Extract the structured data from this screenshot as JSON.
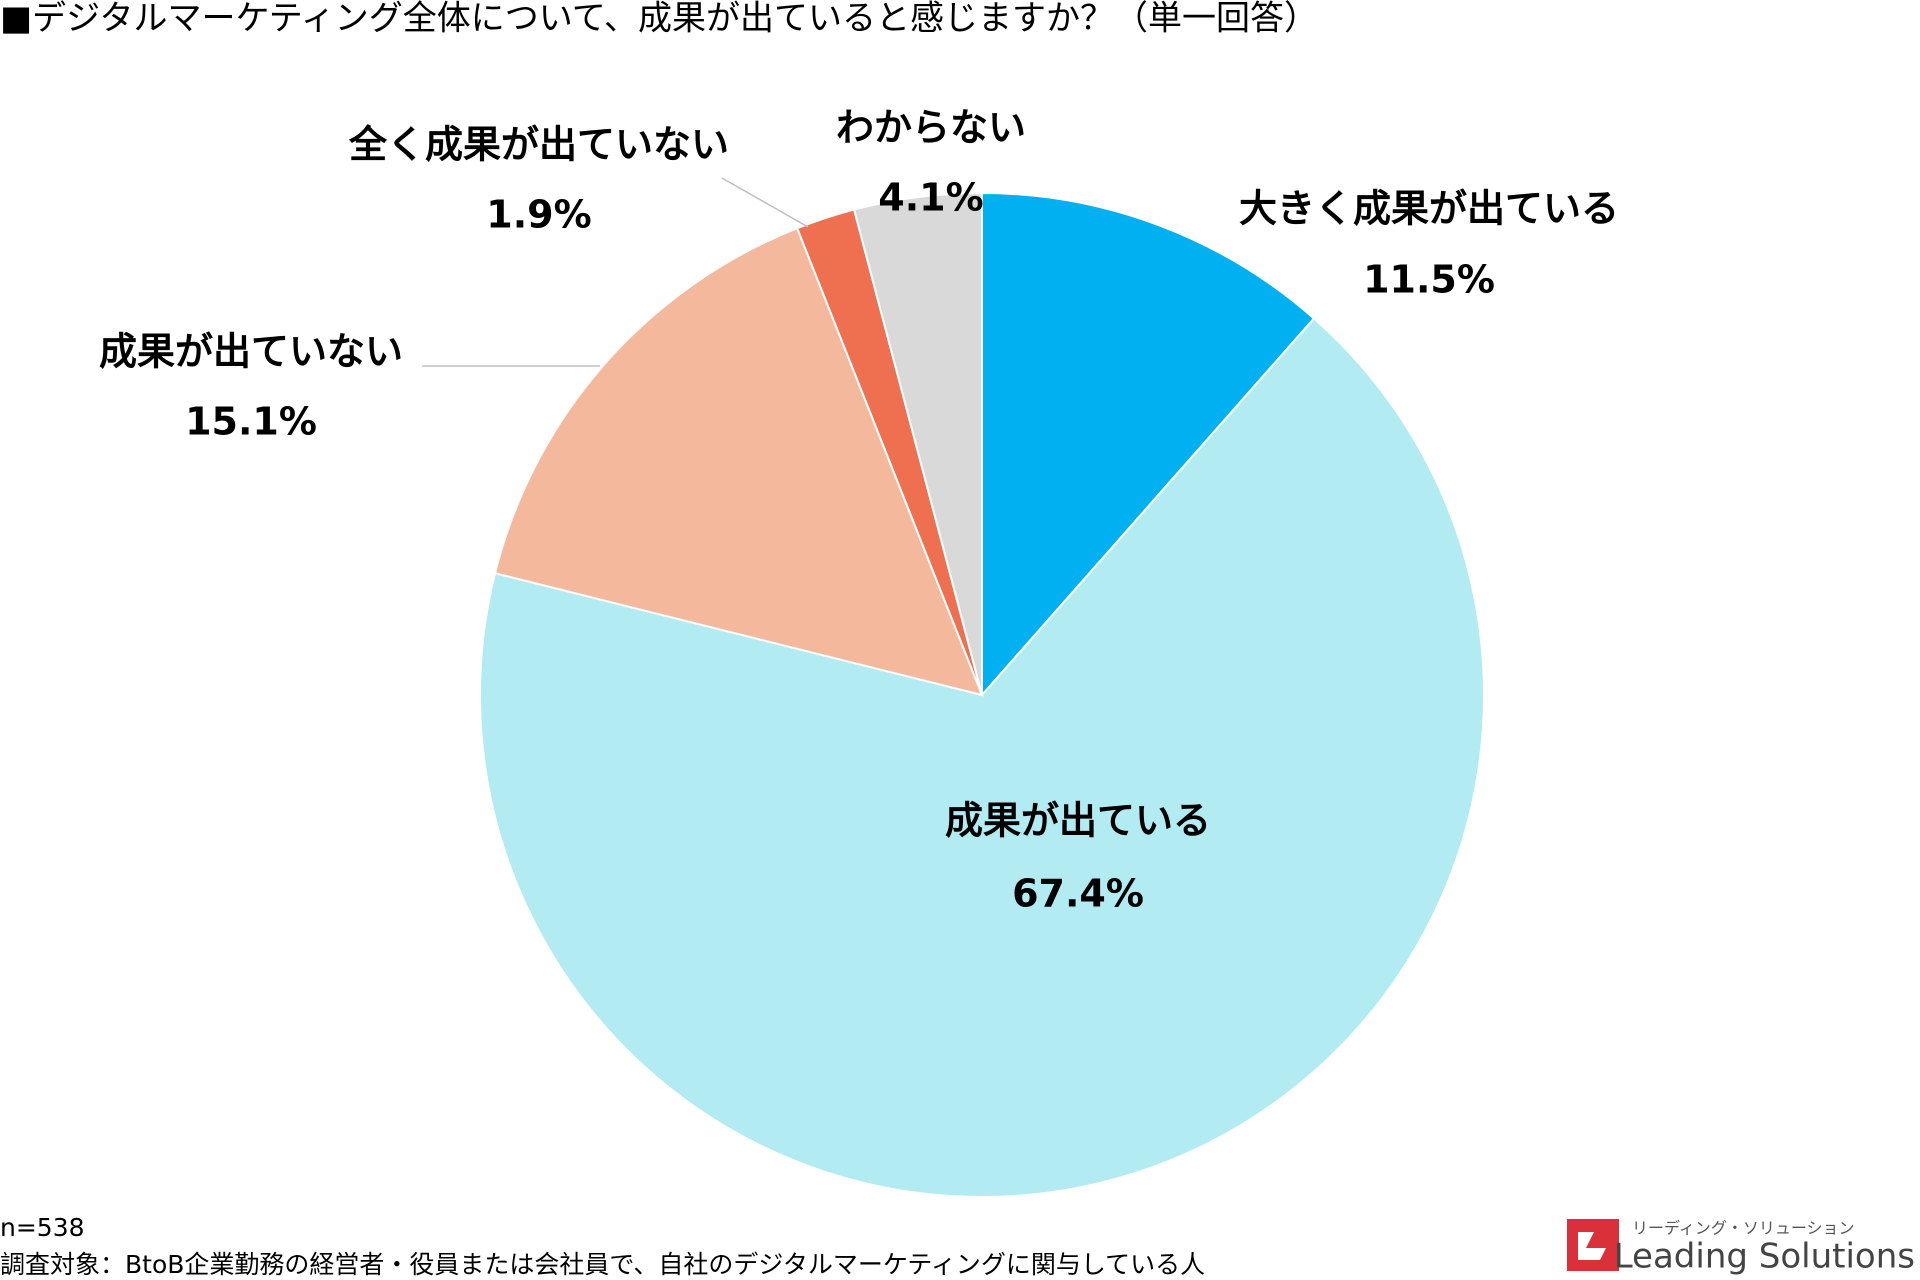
{
  "chart_data": {
    "type": "pie",
    "title": "■デジタルマーケティング全体について、成果が出ていると感じますか？（単一回答）",
    "categories": [
      "大きく成果が出ている",
      "成果が出ている",
      "成果が出ていない",
      "全く成果が出ていない",
      "わからない"
    ],
    "values": [
      11.5,
      67.4,
      15.1,
      1.9,
      4.1
    ],
    "value_labels": [
      "11.5%",
      "67.4%",
      "15.1%",
      "1.9%",
      "4.1%"
    ],
    "colors": [
      "#00b0f0",
      "#b3ebf2",
      "#f4b99c",
      "#ee7050",
      "#d9d9d9"
    ]
  },
  "notes": {
    "sample": "n=538",
    "target": "調査対象：BtoB企業勤務の経営者・役員または会社員で、自社のデジタルマーケティングに関与している人"
  },
  "logo": {
    "kana": "リーディング・ソリューション",
    "name": "Leading Solutions"
  }
}
